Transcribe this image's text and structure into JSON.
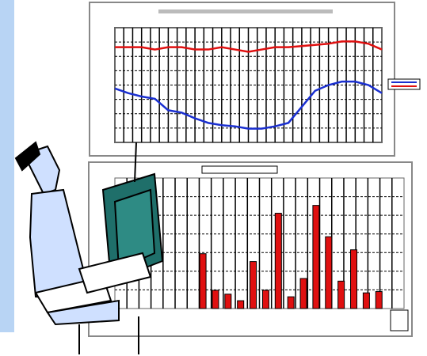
{
  "chart_data": [
    {
      "type": "line",
      "xlim": [
        0,
        20
      ],
      "ylim": [
        0,
        100
      ],
      "grid": true,
      "x": [
        0,
        1,
        2,
        3,
        4,
        5,
        6,
        7,
        8,
        9,
        10,
        11,
        12,
        13,
        14,
        15,
        16,
        17,
        18,
        19,
        20
      ],
      "series": [
        {
          "color": "#e01010",
          "values": [
            83,
            83,
            83,
            81,
            83,
            83,
            81,
            81,
            83,
            81,
            79,
            81,
            83,
            83,
            84,
            85,
            86,
            88,
            88,
            86,
            81
          ]
        },
        {
          "color": "#1a2fd0",
          "values": [
            47,
            43,
            40,
            38,
            28,
            26,
            21,
            17,
            15,
            14,
            12,
            12,
            14,
            17,
            31,
            45,
            50,
            53,
            53,
            50,
            43
          ]
        }
      ]
    },
    {
      "type": "bar",
      "xlim": [
        0,
        23
      ],
      "ylim": [
        0,
        100
      ],
      "grid": true,
      "color": "#e01010",
      "x": [
        7,
        8,
        9,
        10,
        11,
        12,
        13,
        14,
        15,
        16,
        17,
        18,
        19,
        20,
        21
      ],
      "values": [
        42,
        14,
        11,
        6,
        36,
        14,
        73,
        9,
        23,
        79,
        55,
        21,
        45,
        12,
        13
      ]
    }
  ]
}
